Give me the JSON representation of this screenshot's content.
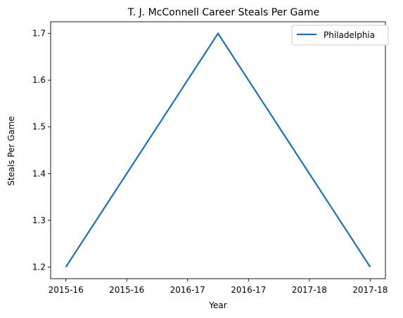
{
  "chart_data": {
    "type": "line",
    "title": "T. J. McConnell Career Steals Per Game",
    "xlabel": "Year",
    "ylabel": "Steals Per Game",
    "x_tick_labels": [
      "2015-16",
      "2015-16",
      "2016-17",
      "2016-17",
      "2017-18",
      "2017-18"
    ],
    "x": [
      0,
      2.5,
      5
    ],
    "x_ticks": [
      0,
      1,
      2,
      3,
      4,
      5
    ],
    "xlim": [
      -0.25,
      5.25
    ],
    "ylim": [
      1.175,
      1.725
    ],
    "y_ticks": [
      1.2,
      1.3,
      1.4,
      1.5,
      1.6,
      1.7
    ],
    "y_tick_labels": [
      "1.2",
      "1.3",
      "1.4",
      "1.5",
      "1.6",
      "1.7"
    ],
    "series": [
      {
        "name": "Philadelphia",
        "values": [
          1.2,
          1.7,
          1.2
        ],
        "color": "#1f6fb4"
      }
    ],
    "legend": "top-right",
    "grid": false
  }
}
